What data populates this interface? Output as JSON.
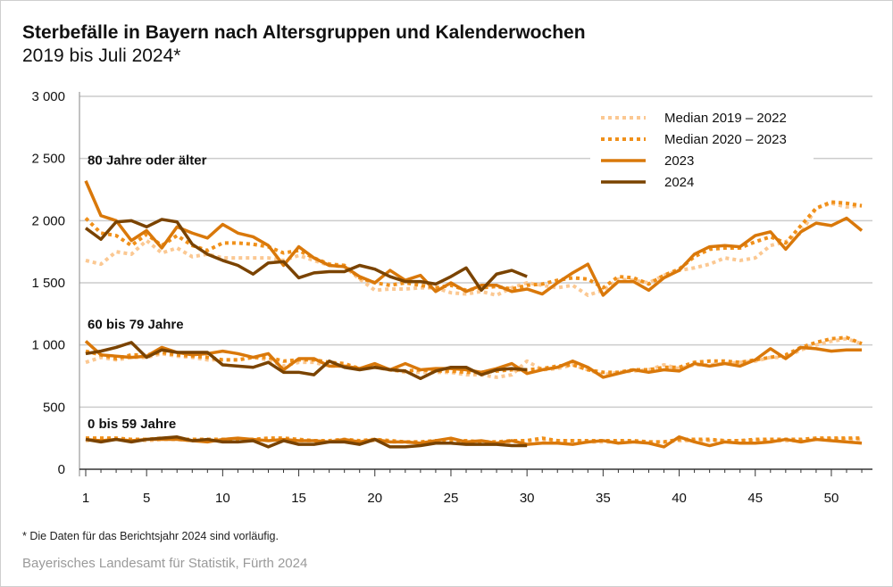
{
  "title": "Sterbefälle in Bayern nach Altersgruppen und Kalenderwochen",
  "subtitle": "2019 bis Juli 2024*",
  "footnote": "* Die Daten für das Berichtsjahr 2024 sind vorläufig.",
  "source": "Bayerisches Landesamt für Statistik, Fürth 2024",
  "chart_data": {
    "type": "line",
    "title": "Sterbefälle in Bayern nach Altersgruppen und Kalenderwochen",
    "xlabel": "",
    "ylabel": "",
    "xlim": [
      1,
      52
    ],
    "ylim": [
      0,
      3000
    ],
    "xticks": [
      1,
      5,
      10,
      15,
      20,
      25,
      30,
      35,
      40,
      45,
      50
    ],
    "yticks": [
      0,
      500,
      1000,
      1500,
      2000,
      2500,
      3000
    ],
    "ytick_labels": [
      "0",
      "500",
      "1 000",
      "1 500",
      "2 000",
      "2 500",
      "3 000"
    ],
    "grid": "horizontal",
    "legend_position": "top-right",
    "legend": [
      {
        "key": "m1922",
        "label": "Median 2019 – 2022",
        "color": "#fbc892",
        "style": "dotted"
      },
      {
        "key": "m2023",
        "label": "Median 2020 – 2023",
        "color": "#f0901a",
        "style": "dotted"
      },
      {
        "key": "y2023",
        "label": "2023",
        "color": "#d9780a",
        "style": "solid"
      },
      {
        "key": "y2024",
        "label": "2024",
        "color": "#7a4300",
        "style": "solid"
      }
    ],
    "groups": [
      {
        "label": "80 Jahre oder älter",
        "series": {
          "m1922": [
            1680,
            1650,
            1750,
            1730,
            1840,
            1740,
            1780,
            1710,
            1730,
            1700,
            1700,
            1700,
            1700,
            1680,
            1720,
            1680,
            1640,
            1630,
            1530,
            1440,
            1450,
            1450,
            1460,
            1460,
            1420,
            1410,
            1430,
            1400,
            1460,
            1500,
            1480,
            1460,
            1480,
            1400,
            1440,
            1530,
            1520,
            1500,
            1560,
            1600,
            1620,
            1650,
            1700,
            1680,
            1700,
            1800,
            1830,
            1900,
            2100,
            2140,
            2110,
            2120
          ],
          "m2023": [
            2020,
            1900,
            1880,
            1800,
            1890,
            1800,
            1880,
            1800,
            1760,
            1820,
            1820,
            1810,
            1790,
            1740,
            1760,
            1700,
            1650,
            1640,
            1540,
            1500,
            1480,
            1500,
            1480,
            1460,
            1480,
            1440,
            1460,
            1470,
            1450,
            1480,
            1490,
            1520,
            1540,
            1530,
            1460,
            1550,
            1540,
            1490,
            1560,
            1610,
            1710,
            1770,
            1780,
            1780,
            1830,
            1870,
            1820,
            1960,
            2100,
            2150,
            2140,
            2120
          ],
          "y2023": [
            2320,
            2040,
            2000,
            1840,
            1920,
            1780,
            1950,
            1900,
            1860,
            1970,
            1900,
            1870,
            1800,
            1640,
            1790,
            1700,
            1640,
            1630,
            1550,
            1500,
            1600,
            1520,
            1560,
            1430,
            1500,
            1430,
            1480,
            1480,
            1430,
            1450,
            1410,
            1500,
            1580,
            1650,
            1400,
            1510,
            1510,
            1440,
            1540,
            1600,
            1730,
            1790,
            1800,
            1790,
            1880,
            1910,
            1770,
            1910,
            1980,
            1960,
            2020,
            1920
          ],
          "y2024": [
            1940,
            1850,
            1990,
            2000,
            1950,
            2010,
            1990,
            1810,
            1730,
            1680,
            1640,
            1570,
            1660,
            1670,
            1540,
            1580,
            1590,
            1590,
            1640,
            1610,
            1550,
            1510,
            1510,
            1490,
            1550,
            1620,
            1440,
            1570,
            1600,
            1550
          ]
        }
      },
      {
        "label": "60 bis 79 Jahre",
        "series": {
          "m1922": [
            860,
            900,
            880,
            900,
            900,
            930,
            910,
            900,
            880,
            880,
            880,
            900,
            880,
            830,
            860,
            860,
            830,
            830,
            810,
            820,
            800,
            780,
            780,
            780,
            780,
            760,
            760,
            740,
            760,
            870,
            800,
            810,
            840,
            800,
            760,
            780,
            790,
            800,
            840,
            810,
            840,
            840,
            850,
            860,
            870,
            900,
            900,
            960,
            1000,
            1030,
            1050,
            1010
          ],
          "m2023": [
            950,
            920,
            890,
            920,
            920,
            940,
            920,
            910,
            900,
            880,
            880,
            900,
            900,
            870,
            880,
            880,
            860,
            850,
            810,
            830,
            800,
            790,
            800,
            790,
            790,
            780,
            780,
            790,
            800,
            800,
            810,
            830,
            840,
            800,
            780,
            780,
            800,
            800,
            820,
            820,
            860,
            870,
            870,
            860,
            880,
            900,
            920,
            980,
            1020,
            1050,
            1060,
            1010
          ],
          "y2023": [
            1030,
            920,
            910,
            900,
            910,
            980,
            940,
            920,
            930,
            950,
            930,
            900,
            930,
            800,
            890,
            890,
            830,
            830,
            810,
            850,
            800,
            850,
            800,
            810,
            810,
            800,
            780,
            810,
            850,
            770,
            800,
            820,
            870,
            820,
            740,
            770,
            800,
            780,
            800,
            790,
            850,
            830,
            850,
            830,
            880,
            970,
            890,
            980,
            970,
            950,
            960,
            960
          ],
          "y2024": [
            930,
            950,
            980,
            1020,
            900,
            960,
            940,
            940,
            940,
            840,
            830,
            820,
            860,
            780,
            780,
            760,
            870,
            820,
            800,
            820,
            800,
            790,
            730,
            790,
            820,
            820,
            760,
            800,
            810,
            800
          ]
        }
      },
      {
        "label": "0 bis 59 Jahre",
        "series": {
          "m1922": [
            230,
            240,
            240,
            240,
            230,
            240,
            240,
            230,
            230,
            230,
            230,
            240,
            240,
            230,
            230,
            230,
            230,
            230,
            230,
            230,
            220,
            220,
            220,
            220,
            230,
            220,
            220,
            220,
            220,
            230,
            230,
            230,
            230,
            220,
            220,
            220,
            220,
            220,
            220,
            230,
            230,
            230,
            230,
            230,
            230,
            230,
            230,
            230,
            240,
            240,
            240,
            240
          ],
          "m2023": [
            250,
            250,
            250,
            240,
            240,
            250,
            240,
            240,
            240,
            240,
            240,
            240,
            250,
            250,
            240,
            230,
            230,
            240,
            230,
            240,
            230,
            220,
            220,
            230,
            230,
            230,
            220,
            220,
            230,
            230,
            250,
            230,
            230,
            230,
            230,
            230,
            230,
            220,
            220,
            240,
            240,
            240,
            230,
            230,
            240,
            240,
            240,
            240,
            250,
            250,
            250,
            250
          ],
          "y2023": [
            240,
            230,
            240,
            230,
            240,
            240,
            240,
            230,
            220,
            240,
            250,
            240,
            230,
            240,
            230,
            230,
            220,
            240,
            220,
            240,
            220,
            220,
            210,
            230,
            250,
            220,
            230,
            210,
            230,
            200,
            210,
            210,
            200,
            220,
            230,
            210,
            220,
            210,
            180,
            260,
            220,
            190,
            220,
            210,
            210,
            220,
            240,
            220,
            240,
            230,
            220,
            210
          ],
          "y2024": [
            240,
            220,
            240,
            220,
            240,
            250,
            260,
            230,
            240,
            220,
            220,
            230,
            180,
            230,
            200,
            200,
            220,
            220,
            200,
            240,
            180,
            180,
            190,
            210,
            210,
            200,
            200,
            200,
            190,
            190
          ]
        }
      }
    ]
  }
}
